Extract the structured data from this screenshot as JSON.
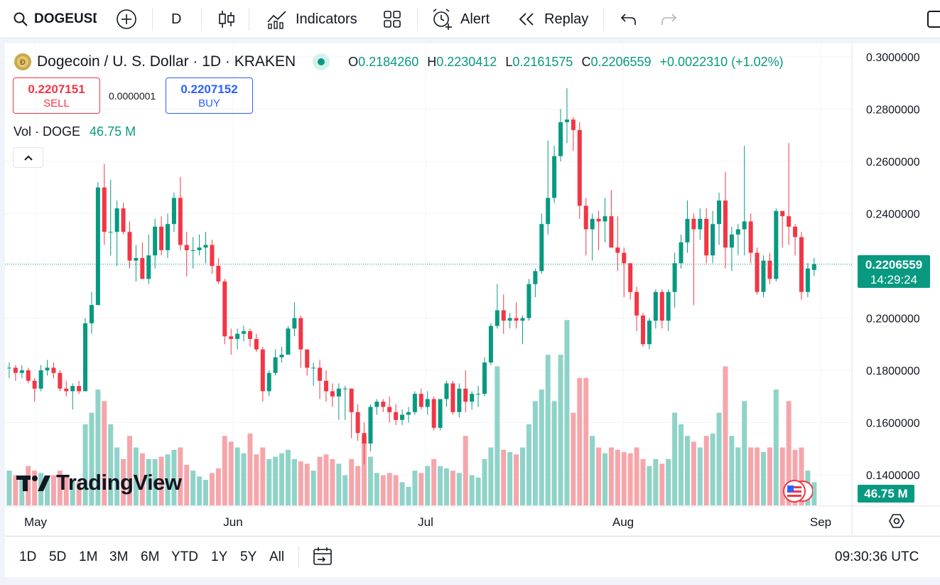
{
  "toolbar": {
    "symbol": "DOGEUSD",
    "interval": "D",
    "indicators_label": "Indicators",
    "alert_label": "Alert",
    "replay_label": "Replay"
  },
  "legend": {
    "title": "Dogecoin / U. S. Dollar · 1D · KRAKEN",
    "o_label": "O",
    "o_value": "0.2184260",
    "h_label": "H",
    "h_value": "0.2230412",
    "l_label": "L",
    "l_value": "0.2161575",
    "c_label": "C",
    "c_value": "0.2206559",
    "change": "+0.0022310 (+1.02%)"
  },
  "trade": {
    "sell_price": "0.2207151",
    "sell_label": "SELL",
    "spread": "0.0000001",
    "buy_price": "0.2207152",
    "buy_label": "BUY"
  },
  "volume_legend": {
    "label": "Vol · DOGE",
    "value": "46.75 M"
  },
  "price_axis": {
    "ticks": [
      "0.3000000",
      "0.2800000",
      "0.2600000",
      "0.2400000",
      "0.2000000",
      "0.1800000",
      "0.1600000",
      "0.1400000"
    ],
    "last_price": "0.2206559",
    "countdown": "14:29:24",
    "volume_tag": "46.75 M"
  },
  "time_axis": {
    "ticks": [
      "May",
      "Jun",
      "Jul",
      "Aug",
      "Sep"
    ]
  },
  "watermark": "TradingView",
  "bottom": {
    "ranges": [
      "1D",
      "5D",
      "1M",
      "3M",
      "6M",
      "YTD",
      "1Y",
      "5Y",
      "All"
    ],
    "clock": "09:30:36 UTC"
  },
  "colors": {
    "up": "#089981",
    "down": "#f23645",
    "vol_up": "#8fd3c8",
    "vol_down": "#f5a6ab",
    "buy": "#2962ff"
  },
  "icons": [
    "search-icon",
    "add-symbol-icon",
    "candles-icon",
    "indicators-icon",
    "templates-icon",
    "alert-icon",
    "replay-icon",
    "undo-icon",
    "redo-icon",
    "collapse-icon",
    "flag-icon",
    "calendar-range-icon",
    "settings-icon"
  ],
  "chart_data": {
    "type": "candlestick",
    "y_axis_range": [
      0.13,
      0.305
    ],
    "x_axis_months": [
      "May",
      "Jun",
      "Jul",
      "Aug",
      "Sep"
    ],
    "last_candle": {
      "open": 0.218426,
      "high": 0.2230412,
      "low": 0.2161575,
      "close": 0.2206559,
      "volume": "46.75 M"
    },
    "candles": [
      {
        "o": 0.181,
        "h": 0.183,
        "l": 0.177,
        "c": 0.181,
        "v": 0.3
      },
      {
        "o": 0.181,
        "h": 0.182,
        "l": 0.176,
        "c": 0.179,
        "v": 0.26
      },
      {
        "o": 0.179,
        "h": 0.182,
        "l": 0.177,
        "c": 0.18,
        "v": 0.24
      },
      {
        "o": 0.18,
        "h": 0.181,
        "l": 0.175,
        "c": 0.176,
        "v": 0.34
      },
      {
        "o": 0.176,
        "h": 0.177,
        "l": 0.168,
        "c": 0.173,
        "v": 0.3
      },
      {
        "o": 0.173,
        "h": 0.182,
        "l": 0.172,
        "c": 0.18,
        "v": 0.28
      },
      {
        "o": 0.18,
        "h": 0.184,
        "l": 0.178,
        "c": 0.181,
        "v": 0.24
      },
      {
        "o": 0.181,
        "h": 0.183,
        "l": 0.177,
        "c": 0.179,
        "v": 0.26
      },
      {
        "o": 0.179,
        "h": 0.18,
        "l": 0.172,
        "c": 0.173,
        "v": 0.3
      },
      {
        "o": 0.173,
        "h": 0.176,
        "l": 0.17,
        "c": 0.172,
        "v": 0.26
      },
      {
        "o": 0.172,
        "h": 0.175,
        "l": 0.165,
        "c": 0.174,
        "v": 0.22
      },
      {
        "o": 0.174,
        "h": 0.176,
        "l": 0.171,
        "c": 0.172,
        "v": 0.2
      },
      {
        "o": 0.172,
        "h": 0.2,
        "l": 0.172,
        "c": 0.198,
        "v": 0.7
      },
      {
        "o": 0.198,
        "h": 0.21,
        "l": 0.194,
        "c": 0.205,
        "v": 0.8
      },
      {
        "o": 0.205,
        "h": 0.252,
        "l": 0.205,
        "c": 0.25,
        "v": 1.0
      },
      {
        "o": 0.25,
        "h": 0.259,
        "l": 0.228,
        "c": 0.233,
        "v": 0.9
      },
      {
        "o": 0.233,
        "h": 0.253,
        "l": 0.224,
        "c": 0.233,
        "v": 0.7
      },
      {
        "o": 0.233,
        "h": 0.245,
        "l": 0.22,
        "c": 0.242,
        "v": 0.5
      },
      {
        "o": 0.242,
        "h": 0.244,
        "l": 0.232,
        "c": 0.233,
        "v": 0.4
      },
      {
        "o": 0.233,
        "h": 0.237,
        "l": 0.219,
        "c": 0.222,
        "v": 0.6
      },
      {
        "o": 0.222,
        "h": 0.228,
        "l": 0.214,
        "c": 0.223,
        "v": 0.5
      },
      {
        "o": 0.223,
        "h": 0.229,
        "l": 0.215,
        "c": 0.215,
        "v": 0.45
      },
      {
        "o": 0.215,
        "h": 0.232,
        "l": 0.213,
        "c": 0.224,
        "v": 0.4
      },
      {
        "o": 0.224,
        "h": 0.238,
        "l": 0.219,
        "c": 0.235,
        "v": 0.4
      },
      {
        "o": 0.235,
        "h": 0.239,
        "l": 0.224,
        "c": 0.226,
        "v": 0.42
      },
      {
        "o": 0.226,
        "h": 0.24,
        "l": 0.223,
        "c": 0.236,
        "v": 0.44
      },
      {
        "o": 0.236,
        "h": 0.248,
        "l": 0.233,
        "c": 0.246,
        "v": 0.48
      },
      {
        "o": 0.246,
        "h": 0.254,
        "l": 0.226,
        "c": 0.228,
        "v": 0.5
      },
      {
        "o": 0.228,
        "h": 0.233,
        "l": 0.216,
        "c": 0.226,
        "v": 0.35
      },
      {
        "o": 0.226,
        "h": 0.231,
        "l": 0.219,
        "c": 0.226,
        "v": 0.3
      },
      {
        "o": 0.226,
        "h": 0.232,
        "l": 0.224,
        "c": 0.227,
        "v": 0.25
      },
      {
        "o": 0.227,
        "h": 0.233,
        "l": 0.221,
        "c": 0.228,
        "v": 0.22
      },
      {
        "o": 0.228,
        "h": 0.23,
        "l": 0.217,
        "c": 0.22,
        "v": 0.28
      },
      {
        "o": 0.22,
        "h": 0.223,
        "l": 0.213,
        "c": 0.214,
        "v": 0.32
      },
      {
        "o": 0.214,
        "h": 0.215,
        "l": 0.19,
        "c": 0.193,
        "v": 0.6
      },
      {
        "o": 0.193,
        "h": 0.196,
        "l": 0.186,
        "c": 0.192,
        "v": 0.55
      },
      {
        "o": 0.192,
        "h": 0.196,
        "l": 0.188,
        "c": 0.194,
        "v": 0.5
      },
      {
        "o": 0.194,
        "h": 0.197,
        "l": 0.191,
        "c": 0.195,
        "v": 0.45
      },
      {
        "o": 0.195,
        "h": 0.196,
        "l": 0.189,
        "c": 0.192,
        "v": 0.62
      },
      {
        "o": 0.192,
        "h": 0.194,
        "l": 0.187,
        "c": 0.188,
        "v": 0.44
      },
      {
        "o": 0.188,
        "h": 0.189,
        "l": 0.168,
        "c": 0.172,
        "v": 0.5
      },
      {
        "o": 0.172,
        "h": 0.18,
        "l": 0.17,
        "c": 0.179,
        "v": 0.4
      },
      {
        "o": 0.179,
        "h": 0.188,
        "l": 0.178,
        "c": 0.185,
        "v": 0.42
      },
      {
        "o": 0.185,
        "h": 0.189,
        "l": 0.183,
        "c": 0.186,
        "v": 0.45
      },
      {
        "o": 0.186,
        "h": 0.197,
        "l": 0.186,
        "c": 0.196,
        "v": 0.48
      },
      {
        "o": 0.196,
        "h": 0.206,
        "l": 0.193,
        "c": 0.2,
        "v": 0.4
      },
      {
        "o": 0.2,
        "h": 0.201,
        "l": 0.181,
        "c": 0.188,
        "v": 0.38
      },
      {
        "o": 0.188,
        "h": 0.188,
        "l": 0.178,
        "c": 0.181,
        "v": 0.36
      },
      {
        "o": 0.181,
        "h": 0.183,
        "l": 0.174,
        "c": 0.181,
        "v": 0.3
      },
      {
        "o": 0.181,
        "h": 0.184,
        "l": 0.169,
        "c": 0.176,
        "v": 0.42
      },
      {
        "o": 0.176,
        "h": 0.18,
        "l": 0.168,
        "c": 0.172,
        "v": 0.44
      },
      {
        "o": 0.172,
        "h": 0.175,
        "l": 0.166,
        "c": 0.17,
        "v": 0.4
      },
      {
        "o": 0.17,
        "h": 0.175,
        "l": 0.161,
        "c": 0.173,
        "v": 0.36
      },
      {
        "o": 0.173,
        "h": 0.174,
        "l": 0.161,
        "c": 0.173,
        "v": 0.26
      },
      {
        "o": 0.173,
        "h": 0.173,
        "l": 0.154,
        "c": 0.164,
        "v": 0.4
      },
      {
        "o": 0.164,
        "h": 0.167,
        "l": 0.153,
        "c": 0.156,
        "v": 0.34
      },
      {
        "o": 0.156,
        "h": 0.16,
        "l": 0.144,
        "c": 0.152,
        "v": 0.6
      },
      {
        "o": 0.152,
        "h": 0.167,
        "l": 0.149,
        "c": 0.166,
        "v": 0.42
      },
      {
        "o": 0.166,
        "h": 0.169,
        "l": 0.163,
        "c": 0.168,
        "v": 0.28
      },
      {
        "o": 0.168,
        "h": 0.169,
        "l": 0.164,
        "c": 0.166,
        "v": 0.26
      },
      {
        "o": 0.166,
        "h": 0.17,
        "l": 0.16,
        "c": 0.164,
        "v": 0.28
      },
      {
        "o": 0.164,
        "h": 0.167,
        "l": 0.159,
        "c": 0.161,
        "v": 0.26
      },
      {
        "o": 0.161,
        "h": 0.165,
        "l": 0.159,
        "c": 0.163,
        "v": 0.2
      },
      {
        "o": 0.163,
        "h": 0.166,
        "l": 0.16,
        "c": 0.164,
        "v": 0.16
      },
      {
        "o": 0.164,
        "h": 0.172,
        "l": 0.163,
        "c": 0.171,
        "v": 0.3
      },
      {
        "o": 0.171,
        "h": 0.173,
        "l": 0.165,
        "c": 0.166,
        "v": 0.28
      },
      {
        "o": 0.166,
        "h": 0.172,
        "l": 0.163,
        "c": 0.169,
        "v": 0.34
      },
      {
        "o": 0.169,
        "h": 0.17,
        "l": 0.157,
        "c": 0.158,
        "v": 0.4
      },
      {
        "o": 0.158,
        "h": 0.169,
        "l": 0.157,
        "c": 0.169,
        "v": 0.34
      },
      {
        "o": 0.169,
        "h": 0.176,
        "l": 0.166,
        "c": 0.175,
        "v": 0.32
      },
      {
        "o": 0.175,
        "h": 0.176,
        "l": 0.163,
        "c": 0.164,
        "v": 0.3
      },
      {
        "o": 0.164,
        "h": 0.175,
        "l": 0.162,
        "c": 0.173,
        "v": 0.28
      },
      {
        "o": 0.173,
        "h": 0.18,
        "l": 0.164,
        "c": 0.168,
        "v": 0.6
      },
      {
        "o": 0.168,
        "h": 0.172,
        "l": 0.165,
        "c": 0.171,
        "v": 0.26
      },
      {
        "o": 0.171,
        "h": 0.174,
        "l": 0.166,
        "c": 0.171,
        "v": 0.24
      },
      {
        "o": 0.171,
        "h": 0.185,
        "l": 0.17,
        "c": 0.183,
        "v": 0.4
      },
      {
        "o": 0.183,
        "h": 0.198,
        "l": 0.182,
        "c": 0.197,
        "v": 0.5
      },
      {
        "o": 0.197,
        "h": 0.213,
        "l": 0.196,
        "c": 0.203,
        "v": 1.2
      },
      {
        "o": 0.203,
        "h": 0.209,
        "l": 0.194,
        "c": 0.199,
        "v": 0.48
      },
      {
        "o": 0.199,
        "h": 0.202,
        "l": 0.196,
        "c": 0.2,
        "v": 0.46
      },
      {
        "o": 0.2,
        "h": 0.206,
        "l": 0.196,
        "c": 0.199,
        "v": 0.44
      },
      {
        "o": 0.199,
        "h": 0.201,
        "l": 0.19,
        "c": 0.2,
        "v": 0.5
      },
      {
        "o": 0.2,
        "h": 0.215,
        "l": 0.199,
        "c": 0.213,
        "v": 0.7
      },
      {
        "o": 0.213,
        "h": 0.219,
        "l": 0.208,
        "c": 0.218,
        "v": 0.9
      },
      {
        "o": 0.218,
        "h": 0.24,
        "l": 0.217,
        "c": 0.236,
        "v": 1.0
      },
      {
        "o": 0.236,
        "h": 0.268,
        "l": 0.232,
        "c": 0.246,
        "v": 1.3
      },
      {
        "o": 0.246,
        "h": 0.266,
        "l": 0.244,
        "c": 0.262,
        "v": 0.9
      },
      {
        "o": 0.262,
        "h": 0.28,
        "l": 0.26,
        "c": 0.275,
        "v": 1.3
      },
      {
        "o": 0.275,
        "h": 0.288,
        "l": 0.267,
        "c": 0.276,
        "v": 1.6
      },
      {
        "o": 0.276,
        "h": 0.277,
        "l": 0.264,
        "c": 0.272,
        "v": 0.8
      },
      {
        "o": 0.272,
        "h": 0.275,
        "l": 0.238,
        "c": 0.243,
        "v": 1.1
      },
      {
        "o": 0.243,
        "h": 0.246,
        "l": 0.224,
        "c": 0.234,
        "v": 1.1
      },
      {
        "o": 0.234,
        "h": 0.24,
        "l": 0.222,
        "c": 0.238,
        "v": 0.6
      },
      {
        "o": 0.238,
        "h": 0.241,
        "l": 0.226,
        "c": 0.237,
        "v": 0.5
      },
      {
        "o": 0.237,
        "h": 0.246,
        "l": 0.229,
        "c": 0.239,
        "v": 0.45
      },
      {
        "o": 0.239,
        "h": 0.249,
        "l": 0.227,
        "c": 0.227,
        "v": 0.5
      },
      {
        "o": 0.227,
        "h": 0.239,
        "l": 0.218,
        "c": 0.225,
        "v": 0.48
      },
      {
        "o": 0.225,
        "h": 0.227,
        "l": 0.208,
        "c": 0.221,
        "v": 0.46
      },
      {
        "o": 0.221,
        "h": 0.221,
        "l": 0.207,
        "c": 0.21,
        "v": 0.45
      },
      {
        "o": 0.21,
        "h": 0.212,
        "l": 0.195,
        "c": 0.201,
        "v": 0.5
      },
      {
        "o": 0.201,
        "h": 0.202,
        "l": 0.189,
        "c": 0.19,
        "v": 0.4
      },
      {
        "o": 0.19,
        "h": 0.2,
        "l": 0.188,
        "c": 0.199,
        "v": 0.34
      },
      {
        "o": 0.199,
        "h": 0.211,
        "l": 0.196,
        "c": 0.21,
        "v": 0.4
      },
      {
        "o": 0.21,
        "h": 0.211,
        "l": 0.196,
        "c": 0.199,
        "v": 0.36
      },
      {
        "o": 0.199,
        "h": 0.211,
        "l": 0.195,
        "c": 0.21,
        "v": 0.4
      },
      {
        "o": 0.21,
        "h": 0.225,
        "l": 0.204,
        "c": 0.221,
        "v": 0.8
      },
      {
        "o": 0.221,
        "h": 0.232,
        "l": 0.219,
        "c": 0.229,
        "v": 0.7
      },
      {
        "o": 0.229,
        "h": 0.245,
        "l": 0.225,
        "c": 0.238,
        "v": 0.6
      },
      {
        "o": 0.238,
        "h": 0.24,
        "l": 0.205,
        "c": 0.234,
        "v": 0.55
      },
      {
        "o": 0.234,
        "h": 0.242,
        "l": 0.23,
        "c": 0.238,
        "v": 0.5
      },
      {
        "o": 0.238,
        "h": 0.242,
        "l": 0.221,
        "c": 0.224,
        "v": 0.6
      },
      {
        "o": 0.224,
        "h": 0.241,
        "l": 0.221,
        "c": 0.236,
        "v": 0.62
      },
      {
        "o": 0.236,
        "h": 0.248,
        "l": 0.228,
        "c": 0.245,
        "v": 0.8
      },
      {
        "o": 0.245,
        "h": 0.256,
        "l": 0.219,
        "c": 0.227,
        "v": 1.2
      },
      {
        "o": 0.227,
        "h": 0.235,
        "l": 0.218,
        "c": 0.232,
        "v": 0.6
      },
      {
        "o": 0.232,
        "h": 0.236,
        "l": 0.224,
        "c": 0.234,
        "v": 0.5
      },
      {
        "o": 0.234,
        "h": 0.266,
        "l": 0.224,
        "c": 0.237,
        "v": 0.9
      },
      {
        "o": 0.237,
        "h": 0.24,
        "l": 0.221,
        "c": 0.225,
        "v": 0.5
      },
      {
        "o": 0.225,
        "h": 0.227,
        "l": 0.209,
        "c": 0.21,
        "v": 0.5
      },
      {
        "o": 0.21,
        "h": 0.224,
        "l": 0.208,
        "c": 0.222,
        "v": 0.46
      },
      {
        "o": 0.222,
        "h": 0.225,
        "l": 0.213,
        "c": 0.215,
        "v": 0.5
      },
      {
        "o": 0.215,
        "h": 0.242,
        "l": 0.214,
        "c": 0.241,
        "v": 1.0
      },
      {
        "o": 0.241,
        "h": 0.241,
        "l": 0.227,
        "c": 0.239,
        "v": 0.5
      },
      {
        "o": 0.239,
        "h": 0.267,
        "l": 0.228,
        "c": 0.235,
        "v": 0.9
      },
      {
        "o": 0.235,
        "h": 0.236,
        "l": 0.224,
        "c": 0.231,
        "v": 0.48
      },
      {
        "o": 0.231,
        "h": 0.233,
        "l": 0.207,
        "c": 0.21,
        "v": 0.5
      },
      {
        "o": 0.21,
        "h": 0.221,
        "l": 0.208,
        "c": 0.219,
        "v": 0.3
      },
      {
        "o": 0.218426,
        "h": 0.2230412,
        "l": 0.2161575,
        "c": 0.2206559,
        "v": 0.2
      }
    ]
  }
}
